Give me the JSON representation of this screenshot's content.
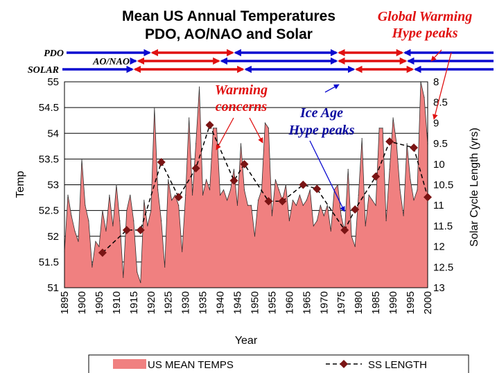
{
  "chart_data": {
    "type": "area",
    "title": "Mean US Annual Temperatures",
    "subtitle": "PDO, AO/NAO and Solar",
    "xlabel": "Year",
    "ylabel": "Temp",
    "y2label": "Solar Cycle Length (yrs)",
    "xlim": [
      1895,
      2000
    ],
    "ylim": [
      51,
      55
    ],
    "y2lim": [
      8,
      13
    ],
    "y2_inverted": true,
    "x_ticks": [
      "1895",
      "1900",
      "1905",
      "1910",
      "1915",
      "1920",
      "1925",
      "1930",
      "1935",
      "1940",
      "1945",
      "1950",
      "1955",
      "1960",
      "1965",
      "1970",
      "1975",
      "1980",
      "1985",
      "1990",
      "1995",
      "2000"
    ],
    "y_ticks": [
      "51",
      "51.5",
      "52",
      "52.5",
      "53",
      "53.5",
      "54",
      "54.5",
      "55"
    ],
    "y2_ticks": [
      "8",
      "8.5",
      "9",
      "9.5",
      "10",
      "10.5",
      "11",
      "11.5",
      "12",
      "12.5",
      "13"
    ],
    "grid": "horizontal",
    "legend_position": "bottom",
    "colors": {
      "temp_fill": "#f08080",
      "temp_line": "#303030",
      "ss_line": "#000000",
      "ss_marker": "#7a1414",
      "red_arrow": "#e01010",
      "blue_arrow": "#0a0ad0"
    },
    "series": [
      {
        "name": "US MEAN TEMPS",
        "axis": "left",
        "x": [
          1895,
          1896,
          1897,
          1898,
          1899,
          1900,
          1901,
          1902,
          1903,
          1904,
          1905,
          1906,
          1907,
          1908,
          1909,
          1910,
          1911,
          1912,
          1913,
          1914,
          1915,
          1916,
          1917,
          1918,
          1919,
          1920,
          1921,
          1922,
          1923,
          1924,
          1925,
          1926,
          1927,
          1928,
          1929,
          1930,
          1931,
          1932,
          1933,
          1934,
          1935,
          1936,
          1937,
          1938,
          1939,
          1940,
          1941,
          1942,
          1943,
          1944,
          1945,
          1946,
          1947,
          1948,
          1949,
          1950,
          1951,
          1952,
          1953,
          1954,
          1955,
          1956,
          1957,
          1958,
          1959,
          1960,
          1961,
          1962,
          1963,
          1964,
          1965,
          1966,
          1967,
          1968,
          1969,
          1970,
          1971,
          1972,
          1973,
          1974,
          1975,
          1976,
          1977,
          1978,
          1979,
          1980,
          1981,
          1982,
          1983,
          1984,
          1985,
          1986,
          1987,
          1988,
          1989,
          1990,
          1991,
          1992,
          1993,
          1994,
          1995,
          1996,
          1997,
          1998,
          1999,
          2000
        ],
        "values": [
          51.7,
          52.8,
          52.4,
          52.1,
          51.9,
          53.5,
          52.6,
          52.3,
          51.4,
          51.9,
          51.8,
          52.5,
          52.1,
          52.8,
          52.2,
          53.0,
          52.3,
          51.2,
          52.5,
          52.8,
          52.3,
          51.3,
          51.1,
          52.7,
          52.2,
          52.5,
          54.5,
          52.9,
          52.3,
          51.4,
          53.1,
          52.7,
          52.8,
          52.6,
          51.7,
          52.8,
          54.3,
          52.8,
          53.8,
          54.9,
          52.8,
          53.1,
          52.9,
          54.1,
          54.1,
          52.8,
          52.9,
          52.7,
          52.9,
          53.3,
          52.6,
          53.8,
          52.9,
          52.6,
          52.6,
          52.0,
          52.7,
          52.9,
          54.2,
          54.1,
          52.4,
          53.1,
          52.9,
          52.7,
          53.0,
          52.3,
          52.7,
          52.6,
          52.8,
          52.6,
          52.7,
          52.9,
          52.2,
          52.3,
          52.6,
          52.4,
          52.6,
          52.1,
          52.9,
          53.0,
          52.4,
          52.1,
          53.3,
          52.0,
          51.8,
          52.8,
          53.9,
          52.2,
          52.8,
          52.7,
          52.6,
          54.1,
          54.1,
          52.3,
          53.3,
          54.3,
          53.8,
          52.9,
          52.4,
          53.8,
          53.1,
          52.7,
          52.9,
          55.0,
          54.7,
          53.8
        ],
        "color": "#f08080"
      },
      {
        "name": "SS LENGTH",
        "axis": "right",
        "x": [
          1906,
          1913,
          1917,
          1923,
          1928,
          1933,
          1937,
          1944,
          1947,
          1954,
          1958,
          1964,
          1968,
          1976,
          1979,
          1985,
          1989,
          1996,
          2000
        ],
        "values": [
          12.15,
          11.6,
          11.6,
          9.95,
          10.8,
          10.1,
          9.05,
          10.4,
          10.0,
          10.9,
          10.9,
          10.5,
          10.6,
          11.6,
          11.1,
          10.3,
          9.45,
          9.6,
          10.8
        ],
        "color": "#7a1414"
      }
    ],
    "annotations": [
      {
        "text_lines": [
          "Global Warming",
          "Hype peaks"
        ],
        "color": "red"
      },
      {
        "text_lines": [
          "Warming",
          "concerns"
        ],
        "color": "red"
      },
      {
        "text_lines": [
          "Ice Age",
          "Hype peaks"
        ],
        "color": "blue"
      }
    ],
    "oscillations": [
      {
        "label": "PDO",
        "segments": [
          {
            "from": 1895,
            "to": 1920,
            "color": "blue",
            "dir": "right"
          },
          {
            "from": 1920,
            "to": 1944,
            "color": "red",
            "dir": "both"
          },
          {
            "from": 1944,
            "to": 1974,
            "color": "blue",
            "dir": "both"
          },
          {
            "from": 1974,
            "to": 1993,
            "color": "red",
            "dir": "both"
          },
          {
            "from": 1993,
            "to": 2000,
            "color": "blue",
            "dir": "left"
          }
        ]
      },
      {
        "label": "AO/NAO",
        "segments": [
          {
            "from": 1904,
            "to": 1916,
            "color": "blue",
            "dir": "right"
          },
          {
            "from": 1916,
            "to": 1940,
            "color": "red",
            "dir": "both"
          },
          {
            "from": 1940,
            "to": 1974,
            "color": "blue",
            "dir": "both"
          },
          {
            "from": 1974,
            "to": 1994,
            "color": "red",
            "dir": "both"
          },
          {
            "from": 1994,
            "to": 2000,
            "color": "blue",
            "dir": "left"
          }
        ]
      },
      {
        "label": "SOLAR",
        "segments": [
          {
            "from": 1895,
            "to": 1915,
            "color": "blue",
            "dir": "right"
          },
          {
            "from": 1915,
            "to": 1947,
            "color": "red",
            "dir": "both"
          },
          {
            "from": 1947,
            "to": 1979,
            "color": "blue",
            "dir": "both"
          },
          {
            "from": 1979,
            "to": 1996,
            "color": "red",
            "dir": "both"
          },
          {
            "from": 1996,
            "to": 2000,
            "color": "blue",
            "dir": "left"
          }
        ]
      }
    ]
  }
}
